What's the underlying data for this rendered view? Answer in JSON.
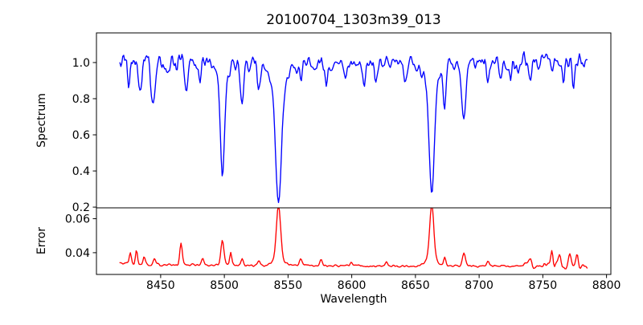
{
  "figure": {
    "title": "20100704_1303m39_013",
    "background_color": "#ffffff",
    "spine_color": "#000000"
  },
  "chart_data": {
    "type": "line",
    "title": "20100704_1303m39_013",
    "xlabel": "Wavelength",
    "xlim": [
      8399.6,
      8803.4
    ],
    "x_ticks": {
      "values": [
        8450,
        8500,
        8550,
        8600,
        8650,
        8700,
        8750,
        8800
      ],
      "labels": [
        "8450",
        "8500",
        "8550",
        "8600",
        "8650",
        "8700",
        "8750",
        "8800"
      ]
    },
    "data_x_range": [
      8418,
      8785,
      0.75
    ],
    "grid": false,
    "legend": "none",
    "rng_seed": 42,
    "panels": [
      {
        "name": "spectrum",
        "ylabel": "Spectrum",
        "ylim": [
          0.196,
          1.164
        ],
        "yticks": {
          "values": [
            0.2,
            0.4,
            0.6,
            0.8,
            1.0
          ],
          "labels": [
            "0.2",
            "0.4",
            "0.6",
            "0.8",
            "1.0"
          ]
        },
        "color": "#0000ff",
        "continuum": 1.0,
        "noise_amp": [
          [
            8418,
            0.055
          ],
          [
            8475,
            0.045
          ],
          [
            8585,
            0.038
          ],
          [
            8655,
            0.045
          ],
          [
            8720,
            0.055
          ]
        ],
        "absorption_lines": [
          [
            8425.0,
            0.11,
            0.9
          ],
          [
            8434.0,
            0.19,
            1.2
          ],
          [
            8444.0,
            0.25,
            1.5
          ],
          [
            8457.0,
            0.09,
            0.9
          ],
          [
            8470.0,
            0.16,
            1.2
          ],
          [
            8481.0,
            0.1,
            0.9
          ],
          [
            8498.5,
            0.52,
            1.5
          ],
          [
            8498.5,
            0.12,
            4.0
          ],
          [
            8514.0,
            0.21,
            1.3
          ],
          [
            8527.0,
            0.15,
            1.1
          ],
          [
            8542.5,
            0.6,
            2.2
          ],
          [
            8542.5,
            0.17,
            6.0
          ],
          [
            8560.0,
            0.1,
            1.0
          ],
          [
            8580.0,
            0.13,
            1.1
          ],
          [
            8595.0,
            0.08,
            1.0
          ],
          [
            8610.0,
            0.13,
            1.0
          ],
          [
            8619.0,
            0.13,
            1.1
          ],
          [
            8642.0,
            0.1,
            1.0
          ],
          [
            8662.8,
            0.58,
            1.9
          ],
          [
            8662.8,
            0.15,
            5.5
          ],
          [
            8673.0,
            0.22,
            1.1
          ],
          [
            8688.0,
            0.33,
            1.5
          ],
          [
            8707.0,
            0.11,
            1.0
          ],
          [
            8717.0,
            0.09,
            0.9
          ],
          [
            8725.0,
            0.1,
            1.0
          ],
          [
            8740.0,
            0.09,
            0.9
          ],
          [
            8766.0,
            0.13,
            1.0
          ],
          [
            8774.0,
            0.14,
            1.0
          ]
        ]
      },
      {
        "name": "error",
        "ylabel": "Error",
        "ylim": [
          0.0272,
          0.0664
        ],
        "yticks": {
          "values": [
            0.04,
            0.06
          ],
          "labels": [
            "0.04",
            "0.06"
          ]
        },
        "color": "#ff0000",
        "baseline": [
          [
            8418,
            0.033
          ],
          [
            8600,
            0.0322
          ],
          [
            8785,
            0.0322
          ]
        ],
        "noise_amp": [
          [
            8418,
            0.0011
          ],
          [
            8450,
            0.0007
          ],
          [
            8735,
            0.0018
          ]
        ],
        "peaks": [
          [
            8426.0,
            0.007,
            0.9
          ],
          [
            8431.0,
            0.0085,
            0.9
          ],
          [
            8437.0,
            0.005,
            0.9
          ],
          [
            8445.0,
            0.0045,
            1.0
          ],
          [
            8466.0,
            0.0125,
            1.0
          ],
          [
            8483.0,
            0.004,
            0.9
          ],
          [
            8498.5,
            0.0145,
            1.2
          ],
          [
            8505.0,
            0.008,
            0.8
          ],
          [
            8514.0,
            0.0035,
            1.0
          ],
          [
            8527.0,
            0.003,
            1.0
          ],
          [
            8542.5,
            0.031,
            1.6
          ],
          [
            8542.5,
            0.0045,
            4.0
          ],
          [
            8560.0,
            0.0035,
            1.0
          ],
          [
            8576.0,
            0.0035,
            1.0
          ],
          [
            8600.0,
            0.002,
            1.0
          ],
          [
            8627.0,
            0.0025,
            1.0
          ],
          [
            8662.8,
            0.032,
            1.6
          ],
          [
            8662.8,
            0.0045,
            4.0
          ],
          [
            8673.0,
            0.005,
            0.9
          ],
          [
            8688.0,
            0.0075,
            1.1
          ],
          [
            8707.0,
            0.003,
            1.0
          ],
          [
            8740.0,
            0.003,
            1.0
          ],
          [
            8757.0,
            0.009,
            0.9
          ],
          [
            8763.0,
            0.0065,
            0.9
          ],
          [
            8771.0,
            0.008,
            0.9
          ],
          [
            8777.0,
            0.006,
            0.9
          ]
        ]
      }
    ]
  }
}
